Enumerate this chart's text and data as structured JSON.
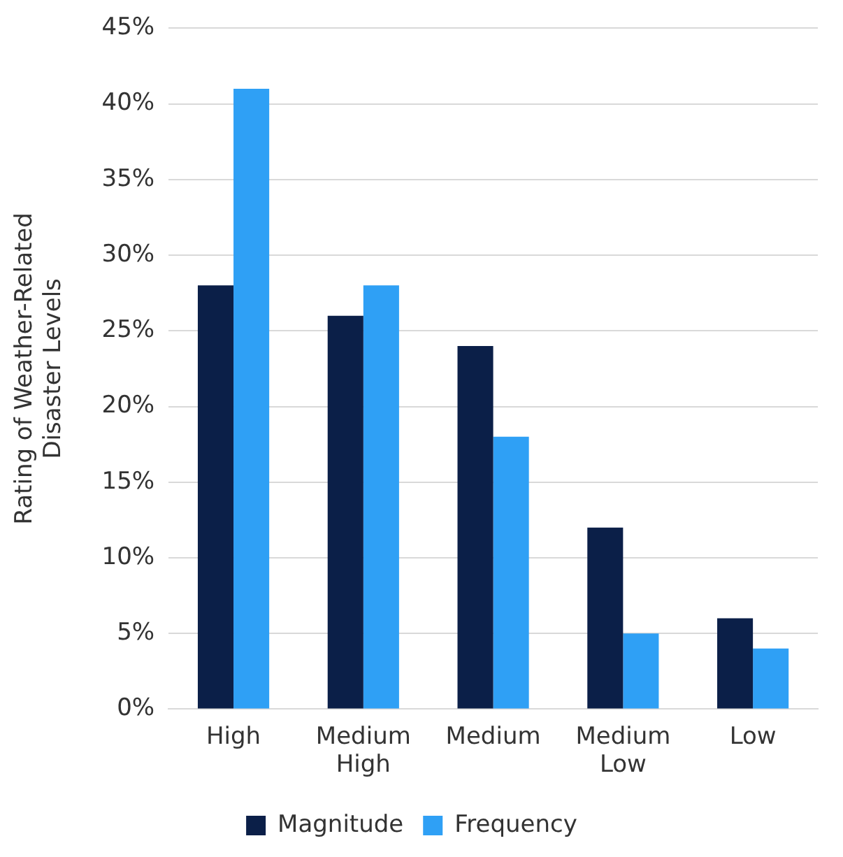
{
  "chart_data": {
    "type": "bar",
    "ylabel": "Rating of Weather-Related Disaster Levels",
    "categories": [
      "High",
      "Medium High",
      "Medium",
      "Medium Low",
      "Low"
    ],
    "series": [
      {
        "name": "Magnitude",
        "color": "#0b1f48",
        "values": [
          28,
          26,
          24,
          12,
          6
        ]
      },
      {
        "name": "Frequency",
        "color": "#2fa0f5",
        "values": [
          41,
          28,
          18,
          5,
          4
        ]
      }
    ],
    "ylim": [
      0,
      45
    ],
    "yticks": [
      {
        "value": 0,
        "label": "0%"
      },
      {
        "value": 5,
        "label": "5%"
      },
      {
        "value": 10,
        "label": "10%"
      },
      {
        "value": 15,
        "label": "15%"
      },
      {
        "value": 20,
        "label": "20%"
      },
      {
        "value": 25,
        "label": "25%"
      },
      {
        "value": 30,
        "label": "30%"
      },
      {
        "value": 35,
        "label": "35%"
      },
      {
        "value": 40,
        "label": "40%"
      },
      {
        "value": 45,
        "label": "45%"
      }
    ],
    "grid": "y",
    "legend": "bottom"
  }
}
